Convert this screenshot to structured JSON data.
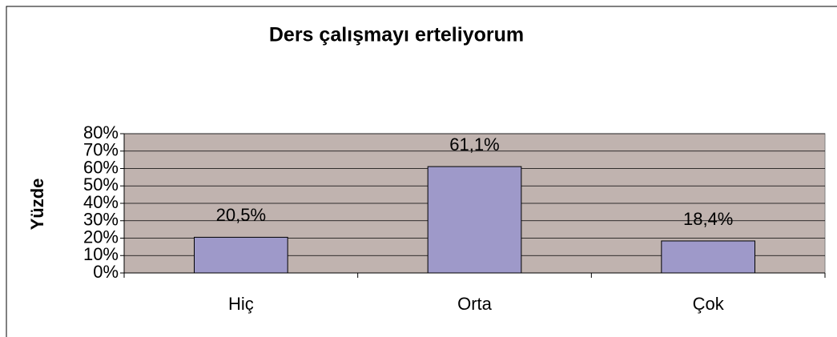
{
  "chart_data": {
    "type": "bar",
    "title": "Ders çalışmayı erteliyorum",
    "y_label": "Yüzde",
    "categories": [
      "Hiç",
      "Orta",
      "Çok"
    ],
    "values": [
      20.5,
      61.1,
      18.4
    ],
    "value_labels": [
      "20,5%",
      "61,1%",
      "18,4%"
    ],
    "color": "#9e99c9",
    "ylim": [
      0,
      80
    ],
    "yticks": [
      {
        "value": 0,
        "label": "0%"
      },
      {
        "value": 10,
        "label": "10%"
      },
      {
        "value": 20,
        "label": "20%"
      },
      {
        "value": 30,
        "label": "30%"
      },
      {
        "value": 40,
        "label": "40%"
      },
      {
        "value": 50,
        "label": "50%"
      },
      {
        "value": 60,
        "label": "60%"
      },
      {
        "value": 70,
        "label": "70%"
      },
      {
        "value": 80,
        "label": "80%"
      }
    ],
    "grid": true
  }
}
